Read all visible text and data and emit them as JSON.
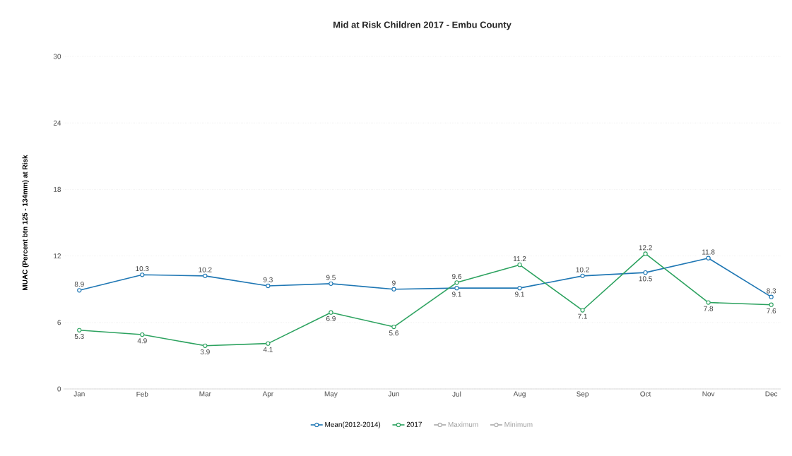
{
  "chart_data": {
    "type": "line",
    "title": "Mid at Risk Children 2017 - Embu County",
    "ylabel": "MUAC (Percent btn 125 - 134mm) at Risk",
    "categories": [
      "Jan",
      "Feb",
      "Mar",
      "Apr",
      "May",
      "Jun",
      "Jul",
      "Aug",
      "Sep",
      "Oct",
      "Nov",
      "Dec"
    ],
    "series": [
      {
        "name": "Mean(2012-2014)",
        "color": "#1f77b4",
        "values": [
          8.9,
          10.3,
          10.2,
          9.3,
          9.5,
          9,
          9.1,
          9.1,
          10.2,
          10.5,
          11.8,
          8.3
        ]
      },
      {
        "name": "2017",
        "color": "#2ca25f",
        "values": [
          5.3,
          4.9,
          3.9,
          4.1,
          6.9,
          5.6,
          9.6,
          11.2,
          7.1,
          12.2,
          7.8,
          7.6
        ]
      },
      {
        "name": "Maximum",
        "color": "#aaaaaa",
        "values": [
          null,
          null,
          null,
          null,
          null,
          null,
          null,
          null,
          null,
          null,
          null,
          null
        ]
      },
      {
        "name": "Minimum",
        "color": "#aaaaaa",
        "values": [
          null,
          null,
          null,
          null,
          null,
          null,
          null,
          null,
          null,
          null,
          null,
          null
        ]
      }
    ],
    "ylim": [
      0,
      30
    ],
    "yticks": [
      0,
      6,
      12,
      18,
      24,
      30
    ],
    "grid": "y",
    "legend": "bottom",
    "marker": "circle",
    "line_style": "solid",
    "data_labels": true
  }
}
